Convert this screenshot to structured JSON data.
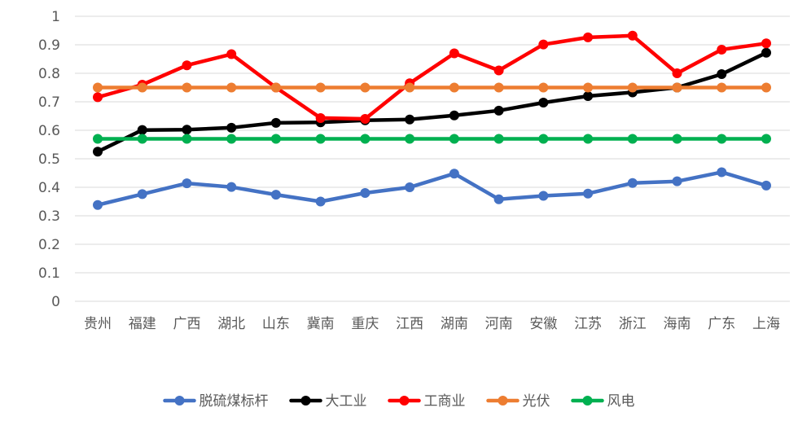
{
  "chart_data": {
    "type": "line",
    "title": "",
    "xlabel": "",
    "ylabel": "",
    "ylim": [
      0,
      1
    ],
    "yticks": [
      "0",
      "0.1",
      "0.2",
      "0.3",
      "0.4",
      "0.5",
      "0.6",
      "0.7",
      "0.8",
      "0.9",
      "1"
    ],
    "grid": true,
    "legend_position": "bottom",
    "categories": [
      "贵州",
      "福建",
      "广西",
      "湖北",
      "山东",
      "冀南",
      "重庆",
      "江西",
      "湖南",
      "河南",
      "安徽",
      "江苏",
      "浙江",
      "海南",
      "广东",
      "上海"
    ],
    "series": [
      {
        "name": "脱硫煤标杆",
        "color": "#4472c4",
        "values": [
          0.338,
          0.376,
          0.414,
          0.401,
          0.374,
          0.35,
          0.38,
          0.4,
          0.448,
          0.358,
          0.37,
          0.378,
          0.415,
          0.421,
          0.453,
          0.406
        ]
      },
      {
        "name": "大工业",
        "color": "#000000",
        "values": [
          0.525,
          0.601,
          0.602,
          0.609,
          0.626,
          0.628,
          0.635,
          0.638,
          0.652,
          0.669,
          0.697,
          0.72,
          0.733,
          0.75,
          0.797,
          0.872
        ]
      },
      {
        "name": "工商业",
        "color": "#ff0000",
        "values": [
          0.716,
          0.76,
          0.828,
          0.867,
          0.75,
          0.643,
          0.64,
          0.765,
          0.87,
          0.81,
          0.901,
          0.926,
          0.932,
          0.8,
          0.883,
          0.905
        ]
      },
      {
        "name": "光伏",
        "color": "#ed7d31",
        "values": [
          0.75,
          0.75,
          0.75,
          0.75,
          0.75,
          0.75,
          0.75,
          0.75,
          0.75,
          0.75,
          0.75,
          0.75,
          0.75,
          0.75,
          0.75,
          0.75
        ]
      },
      {
        "name": "风电",
        "color": "#00b050",
        "values": [
          0.57,
          0.57,
          0.57,
          0.57,
          0.57,
          0.57,
          0.57,
          0.57,
          0.57,
          0.57,
          0.57,
          0.57,
          0.57,
          0.57,
          0.57,
          0.57
        ]
      }
    ]
  }
}
